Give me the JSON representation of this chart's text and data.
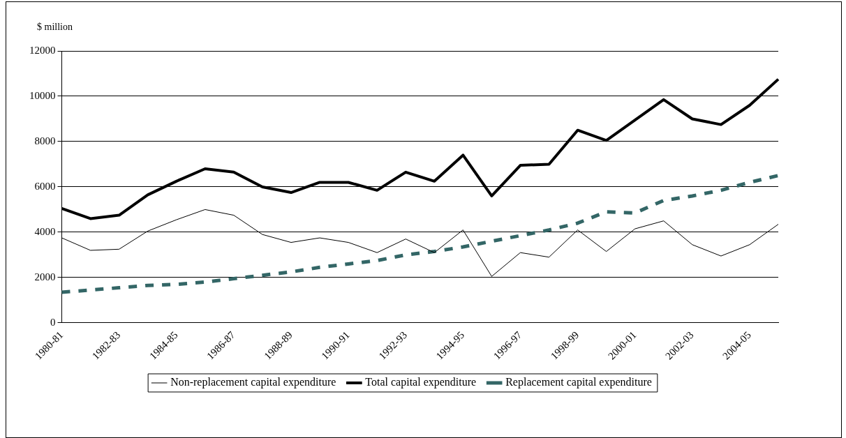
{
  "chart_data": {
    "type": "line",
    "ylabel": "$ million",
    "categories": [
      "1980-81",
      null,
      "1982-83",
      null,
      "1984-85",
      null,
      "1986-87",
      null,
      "1988-89",
      null,
      "1990-91",
      null,
      "1992-93",
      null,
      "1994-95",
      null,
      "1996-97",
      null,
      "1998-99",
      null,
      "2000-01",
      null,
      "2002-03",
      null,
      "2004-05",
      null
    ],
    "series": [
      {
        "name": "Non-replacement capital expenditure",
        "color": "#000000",
        "line_style": "solid",
        "values": [
          3750,
          3200,
          3250,
          4050,
          4550,
          5000,
          4750,
          3900,
          3550,
          3750,
          3550,
          3100,
          3700,
          3100,
          4100,
          2050,
          3100,
          2900,
          4100,
          3150,
          4150,
          4500,
          3450,
          2950,
          3450,
          4350
        ]
      },
      {
        "name": "Total capital expenditure",
        "color": "#000000",
        "line_style": "solid",
        "values": [
          5050,
          4600,
          4750,
          5650,
          6250,
          6800,
          6650,
          6000,
          5750,
          6200,
          6200,
          5850,
          6650,
          6250,
          7400,
          5600,
          6950,
          7000,
          8500,
          8050,
          8950,
          9850,
          9000,
          8750,
          9600,
          10750
        ]
      },
      {
        "name": "Replacement capital expenditure",
        "color": "#336666",
        "line_style": "dashed",
        "values": [
          1350,
          1450,
          1550,
          1650,
          1700,
          1800,
          1950,
          2100,
          2250,
          2450,
          2600,
          2750,
          3000,
          3150,
          3350,
          3600,
          3850,
          4100,
          4400,
          4900,
          4850,
          5400,
          5600,
          5850,
          6200,
          6500
        ]
      }
    ],
    "ylim": [
      0,
      12000
    ],
    "yticks": [
      0,
      2000,
      4000,
      6000,
      8000,
      10000,
      12000
    ],
    "grid": "y",
    "legend": "bottom",
    "marker": "none"
  }
}
